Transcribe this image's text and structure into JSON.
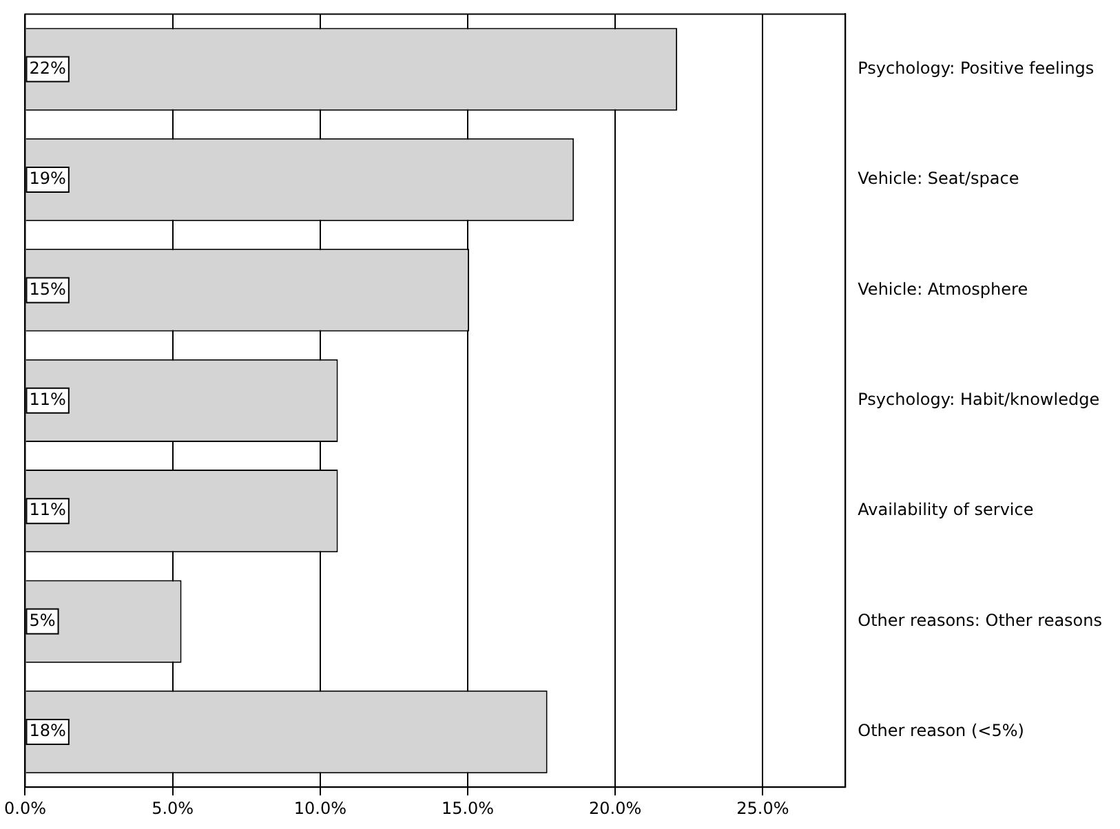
{
  "chart_data": {
    "type": "bar",
    "orientation": "horizontal",
    "categories": [
      "Psychology: Positive feelings",
      "Vehicle: Seat/space",
      "Vehicle: Atmosphere",
      "Psychology: Habit/knowledge",
      "Availability of service",
      "Other reasons: Other reasons",
      "Other reason (<5%)"
    ],
    "values": [
      22.1,
      18.6,
      15.05,
      10.6,
      10.6,
      5.3,
      17.7
    ],
    "value_labels": [
      "22%",
      "19%",
      "15%",
      "11%",
      "11%",
      "5%",
      "18%"
    ],
    "color": "#d4d4d4",
    "xlim": [
      0,
      27.8
    ],
    "xticks": [
      {
        "value": 0,
        "label": "0.0%"
      },
      {
        "value": 5,
        "label": "5.0%"
      },
      {
        "value": 10,
        "label": "10.0%"
      },
      {
        "value": 15,
        "label": "15.0%"
      },
      {
        "value": 20,
        "label": "20.0%"
      },
      {
        "value": 25,
        "label": "25.0%"
      }
    ],
    "grid": "x",
    "legend": false
  }
}
